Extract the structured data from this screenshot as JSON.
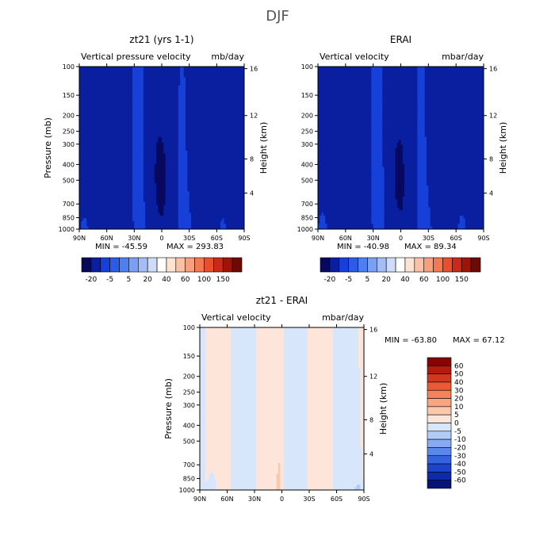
{
  "figure": {
    "title": "DJF"
  },
  "lat_ticks": [
    "90N",
    "60N",
    "30N",
    "0",
    "30S",
    "60S",
    "90S"
  ],
  "pressure_ticks": [
    "100",
    "150",
    "200",
    "250",
    "300",
    "400",
    "500",
    "700",
    "850",
    "1000"
  ],
  "height_ticks": [
    "4",
    "8",
    "12",
    "16"
  ],
  "chart_data": [
    {
      "type": "heatmap",
      "id": "panel1",
      "title": "zt21 (yrs 1-1)",
      "subtitle_left": "Vertical pressure velocity",
      "subtitle_right": "mb/day",
      "xlabel": "",
      "ylabel": "Pressure (mb)",
      "ylabel_right": "Height (km)",
      "xlim": [
        90,
        -90
      ],
      "ylim": [
        1000,
        100
      ],
      "min_label": "MIN = -45.59",
      "max_label": "MAX = 293.83",
      "colorbar": {
        "orientation": "horizontal",
        "levels": [
          -20,
          -5,
          5,
          20,
          40,
          60,
          100,
          150
        ],
        "tick_labels": [
          "-20",
          "-5",
          "5",
          "20",
          "40",
          "60",
          "100",
          "150"
        ],
        "colors": [
          "#08085e",
          "#0a1fa0",
          "#1640d8",
          "#2c5be6",
          "#4d7ff0",
          "#79a0f2",
          "#a4bef5",
          "#cfdcf9",
          "#ffffff",
          "#fde3d2",
          "#f9c2a6",
          "#f6a07d",
          "#f27a52",
          "#e6502e",
          "#c72b1a",
          "#9e1409",
          "#6e0a04"
        ]
      }
    },
    {
      "type": "heatmap",
      "id": "panel2",
      "title": "ERAI",
      "subtitle_left": "Vertical velocity",
      "subtitle_right": "mbar/day",
      "xlabel": "",
      "ylabel": "",
      "ylabel_right": "Height (km)",
      "xlim": [
        90,
        -90
      ],
      "ylim": [
        1000,
        100
      ],
      "min_label": "MIN = -40.98",
      "max_label": "MAX = 89.34",
      "colorbar": {
        "orientation": "horizontal",
        "levels": [
          -20,
          -5,
          5,
          20,
          40,
          60,
          100,
          150
        ],
        "tick_labels": [
          "-20",
          "-5",
          "5",
          "20",
          "40",
          "60",
          "100",
          "150"
        ],
        "colors": [
          "#08085e",
          "#0a1fa0",
          "#1640d8",
          "#2c5be6",
          "#4d7ff0",
          "#79a0f2",
          "#a4bef5",
          "#cfdcf9",
          "#ffffff",
          "#fde3d2",
          "#f9c2a6",
          "#f6a07d",
          "#f27a52",
          "#e6502e",
          "#c72b1a",
          "#9e1409",
          "#6e0a04"
        ]
      }
    },
    {
      "type": "heatmap",
      "id": "panel3",
      "title": "zt21 - ERAI",
      "subtitle_left": "Vertical velocity",
      "subtitle_right": "mbar/day",
      "xlabel": "",
      "ylabel": "Pressure (mb)",
      "ylabel_right": "Height (km)",
      "xlim": [
        90,
        -90
      ],
      "ylim": [
        1000,
        100
      ],
      "min_label": "MIN = -63.80",
      "max_label": "MAX =   67.12",
      "colorbar": {
        "orientation": "vertical",
        "levels": [
          60,
          50,
          40,
          30,
          20,
          10,
          5,
          0,
          -5,
          -10,
          -20,
          -30,
          -40,
          -50,
          -60
        ],
        "tick_labels": [
          "60",
          "50",
          "40",
          "30",
          "20",
          "10",
          "5",
          "0",
          "-5",
          "-10",
          "-20",
          "-30",
          "-40",
          "-50",
          "-60"
        ],
        "colors": [
          "#850505",
          "#b31b0e",
          "#d4371f",
          "#ec5a34",
          "#f7815a",
          "#faa582",
          "#fcc8ad",
          "#fde6d9",
          "#d8e6fb",
          "#b1ccf7",
          "#86abf2",
          "#5b87ea",
          "#3563df",
          "#1b43cc",
          "#0d2ba8",
          "#06147a"
        ]
      }
    }
  ]
}
